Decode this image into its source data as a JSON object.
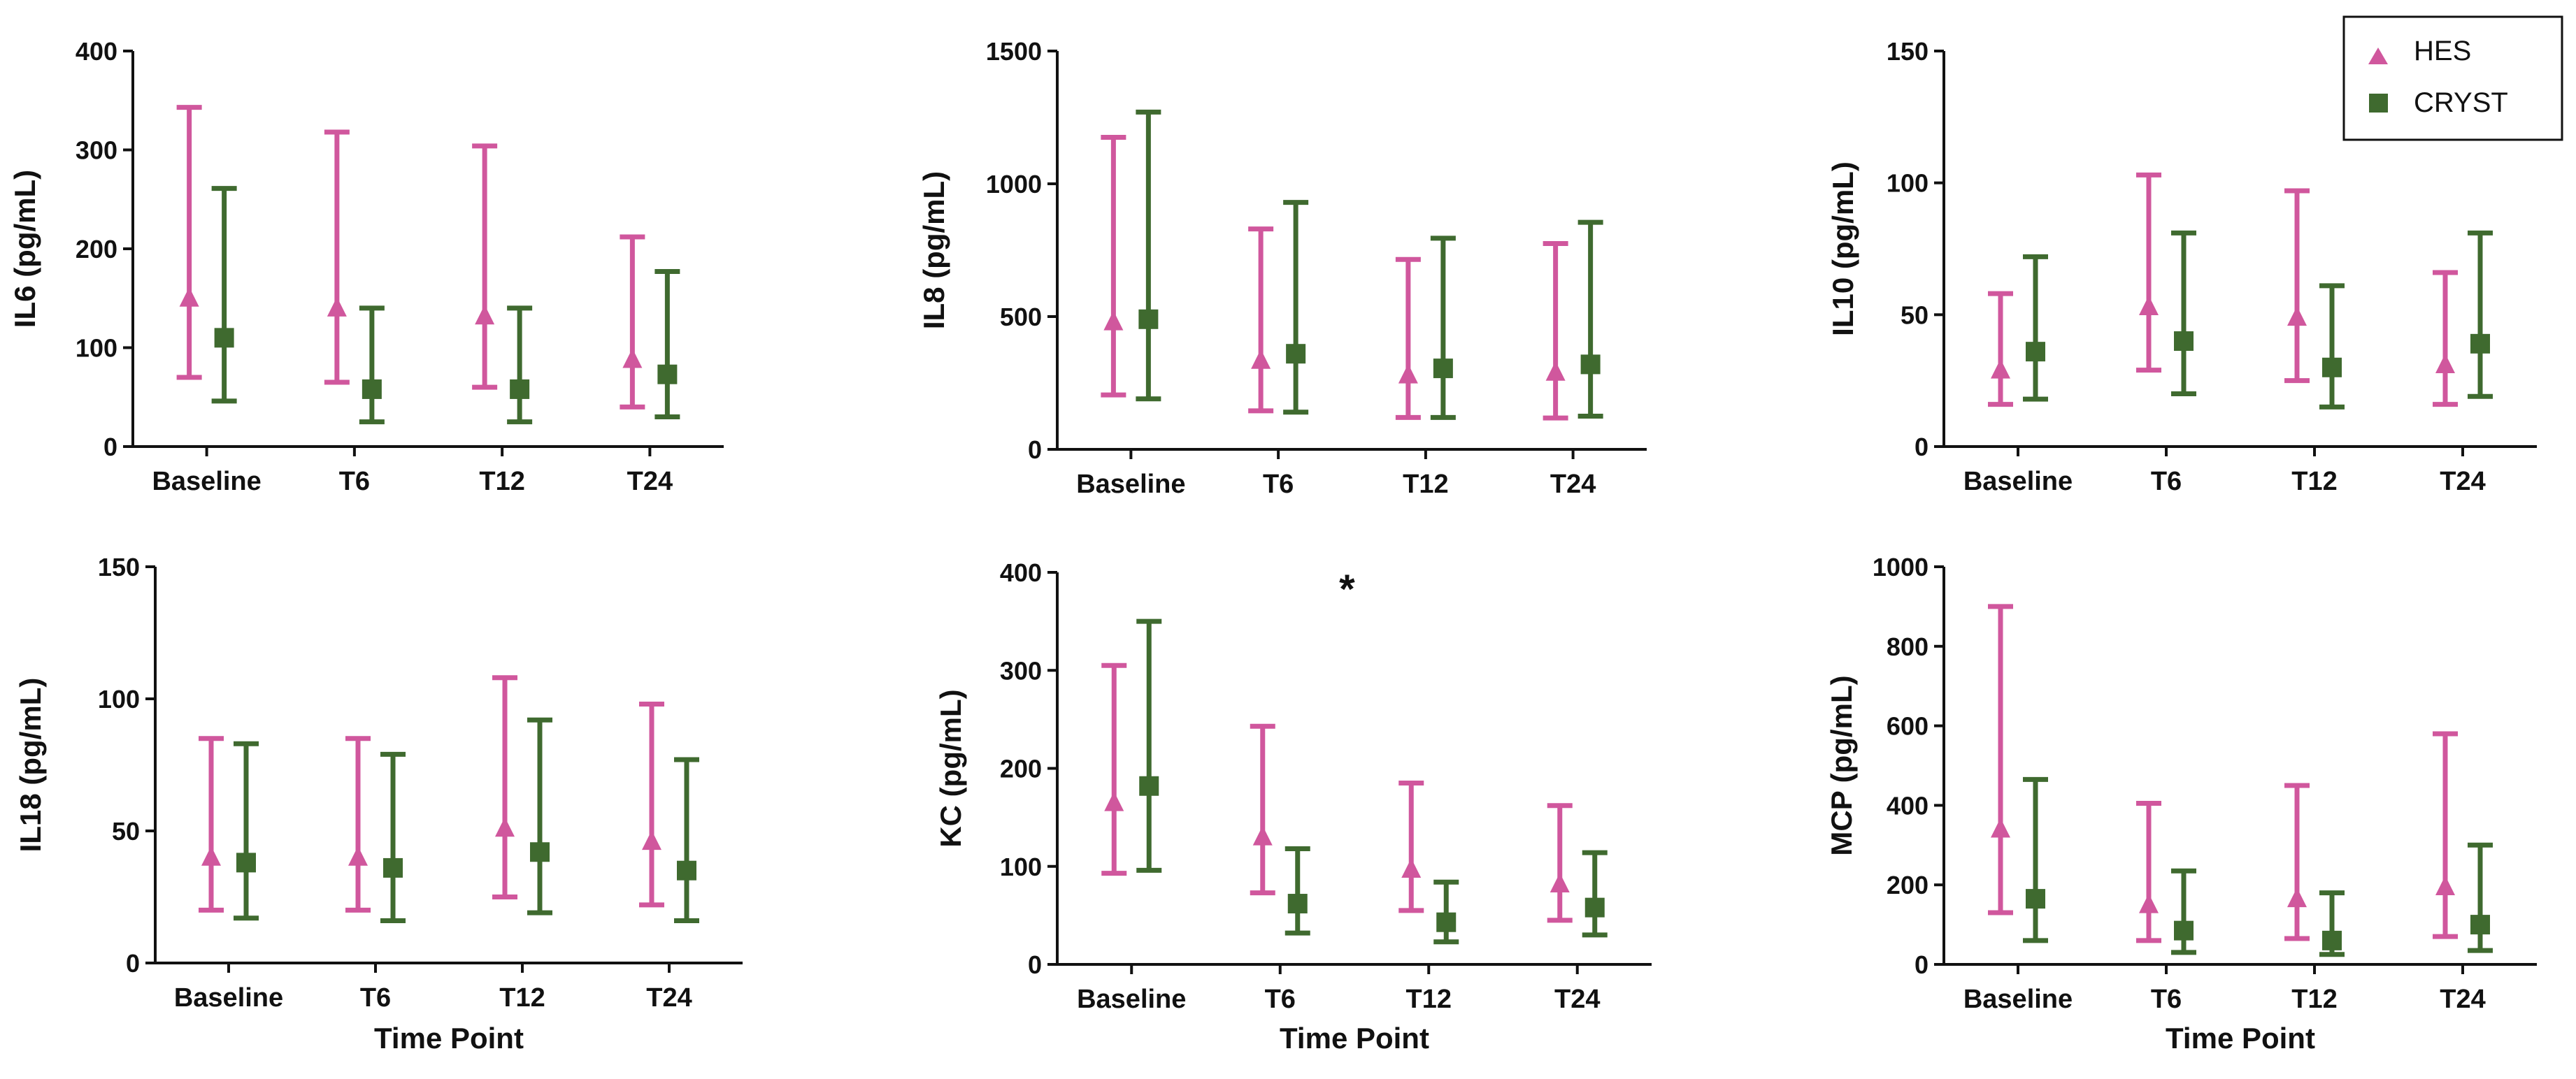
{
  "figure": {
    "legend": [
      {
        "name": "HES",
        "marker": "triangle",
        "color": "#d0579d"
      },
      {
        "name": "CRYST",
        "marker": "square",
        "color": "#3f6a2f"
      }
    ]
  },
  "chart_data": [
    {
      "type": "scatter",
      "ylabel": "IL6 (pg/mL)",
      "xlabel": "",
      "categories": [
        "Baseline",
        "T6",
        "T12",
        "T24"
      ],
      "ylim": [
        0,
        400
      ],
      "yticks": [
        0,
        100,
        200,
        300,
        400
      ],
      "series": [
        {
          "name": "HES",
          "values": [
            150,
            140,
            132,
            88
          ],
          "lower": [
            70,
            65,
            60,
            40
          ],
          "upper": [
            343,
            318,
            304,
            212
          ]
        },
        {
          "name": "CRYST",
          "values": [
            110,
            58,
            58,
            73
          ],
          "lower": [
            46,
            25,
            25,
            30
          ],
          "upper": [
            261,
            140,
            140,
            177
          ]
        }
      ],
      "annotation": ""
    },
    {
      "type": "scatter",
      "ylabel": "IL8 (pg/mL)",
      "xlabel": "",
      "categories": [
        "Baseline",
        "T6",
        "T12",
        "T24"
      ],
      "ylim": [
        0,
        1500
      ],
      "yticks": [
        0,
        500,
        1000,
        1500
      ],
      "series": [
        {
          "name": "HES",
          "values": [
            480,
            335,
            280,
            290
          ],
          "lower": [
            205,
            145,
            120,
            118
          ],
          "upper": [
            1175,
            830,
            715,
            775
          ]
        },
        {
          "name": "CRYST",
          "values": [
            490,
            360,
            305,
            320
          ],
          "lower": [
            190,
            140,
            120,
            125
          ],
          "upper": [
            1270,
            930,
            795,
            855
          ]
        }
      ],
      "annotation": ""
    },
    {
      "type": "scatter",
      "ylabel": "IL10 (pg/mL)",
      "xlabel": "",
      "categories": [
        "Baseline",
        "T6",
        "T12",
        "T24"
      ],
      "ylim": [
        0,
        150
      ],
      "yticks": [
        0,
        50,
        100,
        150
      ],
      "series": [
        {
          "name": "HES",
          "values": [
            29,
            53,
            49,
            31
          ],
          "lower": [
            16,
            29,
            25,
            16
          ],
          "upper": [
            58,
            103,
            97,
            66
          ]
        },
        {
          "name": "CRYST",
          "values": [
            36,
            40,
            30,
            39
          ],
          "lower": [
            18,
            20,
            15,
            19
          ],
          "upper": [
            72,
            81,
            61,
            81
          ]
        }
      ],
      "annotation": ""
    },
    {
      "type": "scatter",
      "ylabel": "IL18 (pg/mL)",
      "xlabel": "Time Point",
      "categories": [
        "Baseline",
        "T6",
        "T12",
        "T24"
      ],
      "ylim": [
        0,
        150
      ],
      "yticks": [
        0,
        50,
        100,
        150
      ],
      "series": [
        {
          "name": "HES",
          "values": [
            40,
            40,
            51,
            46
          ],
          "lower": [
            20,
            20,
            25,
            22
          ],
          "upper": [
            85,
            85,
            108,
            98
          ]
        },
        {
          "name": "CRYST",
          "values": [
            38,
            36,
            42,
            35
          ],
          "lower": [
            17,
            16,
            19,
            16
          ],
          "upper": [
            83,
            79,
            92,
            77
          ]
        }
      ],
      "annotation": ""
    },
    {
      "type": "scatter",
      "ylabel": "KC (pg/mL)",
      "xlabel": "Time Point",
      "categories": [
        "Baseline",
        "T6",
        "T12",
        "T24"
      ],
      "ylim": [
        0,
        400
      ],
      "yticks": [
        0,
        100,
        200,
        300,
        400
      ],
      "series": [
        {
          "name": "HES",
          "values": [
            165,
            130,
            97,
            82
          ],
          "lower": [
            93,
            73,
            55,
            45
          ],
          "upper": [
            305,
            243,
            185,
            162
          ]
        },
        {
          "name": "CRYST",
          "values": [
            182,
            62,
            43,
            58
          ],
          "lower": [
            96,
            32,
            23,
            30
          ],
          "upper": [
            350,
            118,
            84,
            114
          ]
        }
      ],
      "annotation": "*"
    },
    {
      "type": "scatter",
      "ylabel": "MCP (pg/mL)",
      "xlabel": "Time Point",
      "categories": [
        "Baseline",
        "T6",
        "T12",
        "T24"
      ],
      "ylim": [
        0,
        1000
      ],
      "yticks": [
        0,
        200,
        400,
        600,
        800,
        1000
      ],
      "series": [
        {
          "name": "HES",
          "values": [
            340,
            150,
            165,
            195
          ],
          "lower": [
            130,
            60,
            65,
            70
          ],
          "upper": [
            900,
            405,
            450,
            580
          ]
        },
        {
          "name": "CRYST",
          "values": [
            165,
            85,
            60,
            100
          ],
          "lower": [
            60,
            30,
            25,
            35
          ],
          "upper": [
            465,
            235,
            180,
            300
          ]
        }
      ],
      "annotation": ""
    }
  ]
}
